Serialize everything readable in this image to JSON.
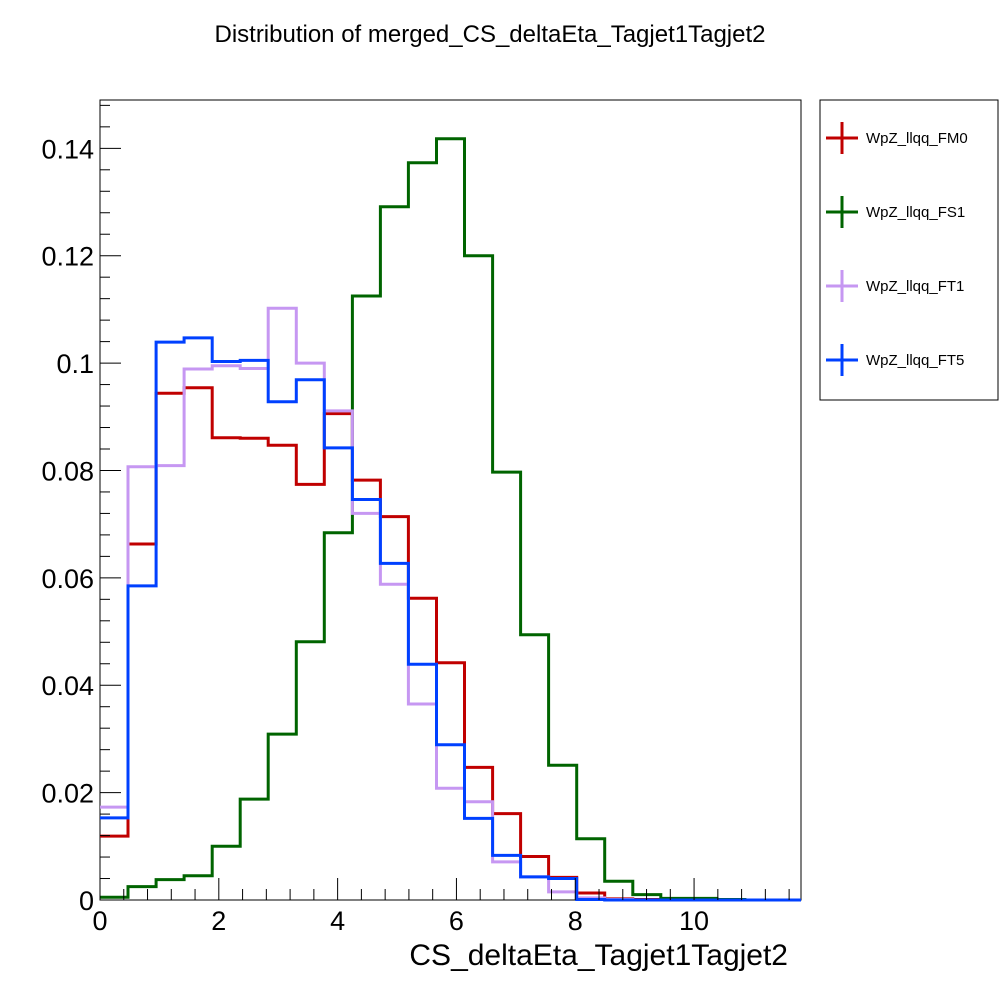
{
  "chart_data": {
    "type": "histogram",
    "title": "Distribution of merged_CS_deltaEta_Tagjet1Tagjet2",
    "xlabel": "CS_deltaEta_Tagjet1Tagjet2",
    "ylabel": "",
    "xlim": [
      0,
      11.8
    ],
    "ylim": [
      0,
      0.149
    ],
    "bin_width": 0.472,
    "x_ticks": [
      0,
      2,
      4,
      6,
      8,
      10
    ],
    "x_tick_labels": [
      "0",
      "2",
      "4",
      "6",
      "8",
      "10"
    ],
    "y_ticks": [
      0,
      0.02,
      0.04,
      0.06,
      0.08,
      0.1,
      0.12,
      0.14
    ],
    "y_tick_labels": [
      "0",
      "0.02",
      "0.04",
      "0.06",
      "0.08",
      "0.1",
      "0.12",
      "0.14"
    ],
    "grid": false,
    "legend_position": "top-right outside",
    "series": [
      {
        "name": "WpZ_llqq_FM0",
        "color": "#c00000",
        "values": [
          0.0119,
          0.0663,
          0.0944,
          0.0954,
          0.0861,
          0.086,
          0.0847,
          0.0774,
          0.0906,
          0.0782,
          0.0714,
          0.0562,
          0.0442,
          0.0247,
          0.0161,
          0.0081,
          0.0042,
          0.0013,
          0.0002,
          0.0001,
          0.0001,
          0.0,
          0.0,
          0.0,
          0.0
        ]
      },
      {
        "name": "WpZ_llqq_FS1",
        "color": "#006400",
        "values": [
          0.0005,
          0.0025,
          0.0038,
          0.0045,
          0.01,
          0.0188,
          0.0309,
          0.0481,
          0.0684,
          0.1125,
          0.1291,
          0.1373,
          0.1418,
          0.12,
          0.0797,
          0.0494,
          0.0251,
          0.0114,
          0.0035,
          0.001,
          0.0003,
          0.0003,
          0.0001,
          0.0,
          0.0
        ]
      },
      {
        "name": "WpZ_llqq_FT1",
        "color": "#c697f2",
        "values": [
          0.0173,
          0.0807,
          0.0809,
          0.0989,
          0.0995,
          0.099,
          0.1102,
          0.1,
          0.0911,
          0.072,
          0.0588,
          0.0365,
          0.0208,
          0.0183,
          0.0071,
          0.0043,
          0.0015,
          0.0004,
          0.0001,
          0.0,
          0.0,
          0.0,
          0.0,
          0.0,
          0.0
        ]
      },
      {
        "name": "WpZ_llqq_FT5",
        "color": "#0040ff",
        "values": [
          0.0153,
          0.0585,
          0.1039,
          0.1047,
          0.1003,
          0.1005,
          0.0928,
          0.0969,
          0.0842,
          0.0746,
          0.0627,
          0.0439,
          0.0289,
          0.0152,
          0.0083,
          0.0043,
          0.004,
          0.0001,
          0.0,
          0.0,
          0.0,
          0.0,
          0.0,
          0.0,
          0.0
        ]
      }
    ]
  }
}
